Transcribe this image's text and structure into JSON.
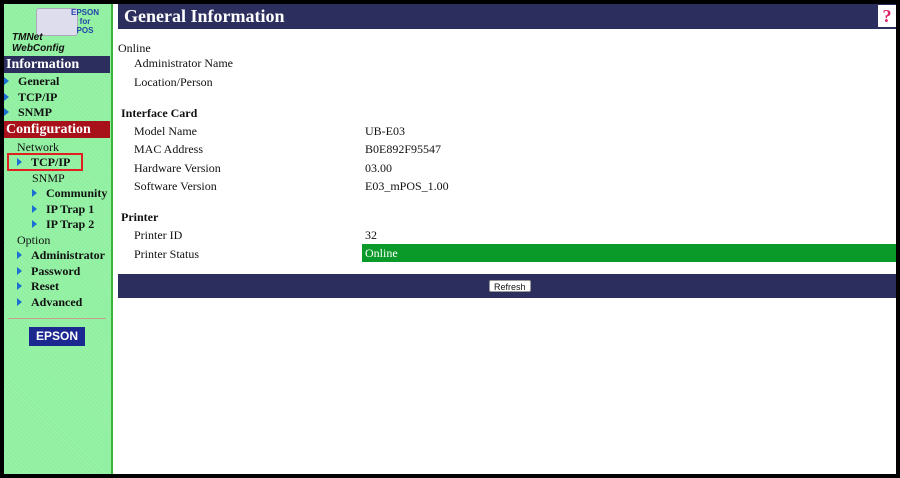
{
  "logo": {
    "brand": "EPSON",
    "for": "for",
    "pos": "POS",
    "product_line1": "TMNet",
    "product_line2": "WebConfig"
  },
  "sidebar": {
    "information": {
      "label": "Information",
      "items": [
        "General",
        "TCP/IP",
        "SNMP"
      ]
    },
    "configuration": {
      "label": "Configuration",
      "network": "Network",
      "tcpip": "TCP/IP",
      "snmp": "SNMP",
      "snmp_items": [
        "Community",
        "IP Trap 1",
        "IP Trap 2"
      ],
      "option": "Option",
      "option_items": [
        "Administrator",
        "Password",
        "Reset",
        "Advanced"
      ]
    },
    "footer_logo": "EPSON",
    "colors": {
      "info_bg": "#2c2f5e",
      "config_bg": "#a8101a",
      "selected_border": "#e02020",
      "bg": "#8ff0a0"
    }
  },
  "header": {
    "title": "General Information",
    "help_icon": "question-mark-icon"
  },
  "online": {
    "heading": "Online",
    "rows": [
      {
        "label": "Administrator Name",
        "value": ""
      },
      {
        "label": "Location/Person",
        "value": ""
      }
    ]
  },
  "interface_card": {
    "heading": "Interface Card",
    "rows": [
      {
        "label": "Model Name",
        "value": "UB-E03"
      },
      {
        "label": "MAC Address",
        "value": "B0E892F95547"
      },
      {
        "label": "Hardware Version",
        "value": "03.00"
      },
      {
        "label": "Software Version",
        "value": "E03_mPOS_1.00"
      }
    ]
  },
  "printer": {
    "heading": "Printer",
    "rows": [
      {
        "label": "Printer ID",
        "value": "32"
      },
      {
        "label": "Printer Status",
        "value": "Online"
      }
    ],
    "status_color": "#0a9a2a"
  },
  "footer": {
    "refresh_label": "Refresh"
  }
}
